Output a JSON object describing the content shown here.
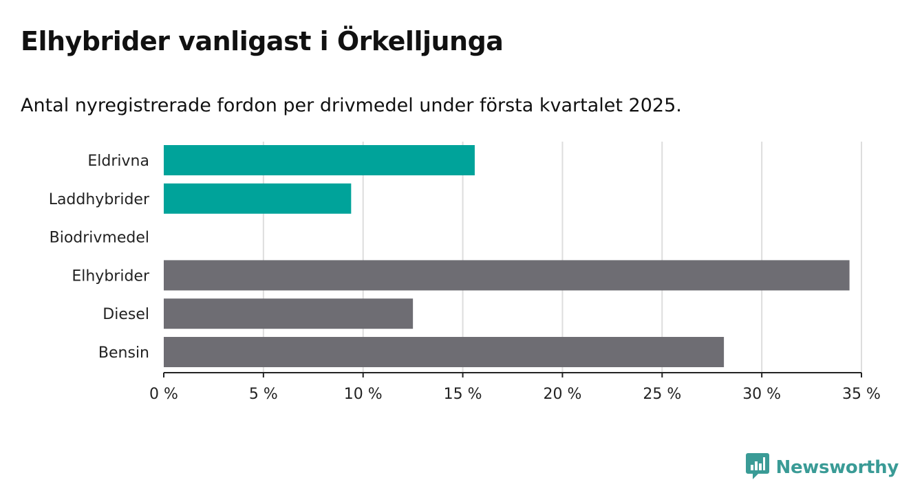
{
  "header": {
    "title": "Elhybrider vanligast i Örkelljunga",
    "subtitle": "Antal nyregistrerade fordon per drivmedel under första kvartalet 2025."
  },
  "chart_data": {
    "type": "bar",
    "orientation": "horizontal",
    "categories": [
      "Eldrivna",
      "Laddhybrider",
      "Biodrivmedel",
      "Elhybrider",
      "Diesel",
      "Bensin"
    ],
    "values": [
      15.6,
      9.4,
      0,
      34.4,
      12.5,
      28.1
    ],
    "colors": [
      "#00a39a",
      "#00a39a",
      "#00a39a",
      "#6e6d73",
      "#6e6d73",
      "#6e6d73"
    ],
    "xlim": [
      0,
      35
    ],
    "xticks": [
      0,
      5,
      10,
      15,
      20,
      25,
      30,
      35
    ],
    "tick_labels": [
      "0 %",
      "5 %",
      "10 %",
      "15 %",
      "20 %",
      "25 %",
      "30 %",
      "35 %"
    ],
    "grid": true,
    "xlabel": "",
    "ylabel": ""
  },
  "colors": {
    "accent": "#00a39a",
    "neutral": "#6e6d73",
    "brand": "#3a9b96",
    "gridline": "#dddddd"
  },
  "brand": {
    "name": "Newsworthy",
    "icon": "newsworthy-logo-icon"
  }
}
